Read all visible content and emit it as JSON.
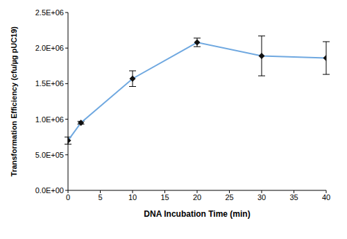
{
  "chart_data": {
    "type": "line",
    "x_label": "DNA Incubation Time (min)",
    "y_label": "Transformation Efficiency (cfu/µg pUC19)",
    "x": [
      0,
      2,
      10,
      20,
      30,
      40
    ],
    "values": [
      700000,
      950000,
      1570000,
      2080000,
      1890000,
      1860000
    ],
    "errors": [
      50000,
      20000,
      110000,
      60000,
      280000,
      230000
    ],
    "color": "#6fa8e0",
    "marker": "diamond",
    "xlim": [
      0,
      40
    ],
    "xticks": [
      0,
      5,
      10,
      15,
      20,
      25,
      30,
      35,
      40
    ],
    "ylim": [
      0,
      2500000
    ],
    "yticks": [
      {
        "value": 0,
        "label": "0.0E+00"
      },
      {
        "value": 500000,
        "label": "5.0E+05"
      },
      {
        "value": 1000000,
        "label": "1.0E+06"
      },
      {
        "value": 1500000,
        "label": "1.5E+06"
      },
      {
        "value": 2000000,
        "label": "2.0E+06"
      },
      {
        "value": 2500000,
        "label": "2.5E+06"
      }
    ],
    "grid": false
  }
}
